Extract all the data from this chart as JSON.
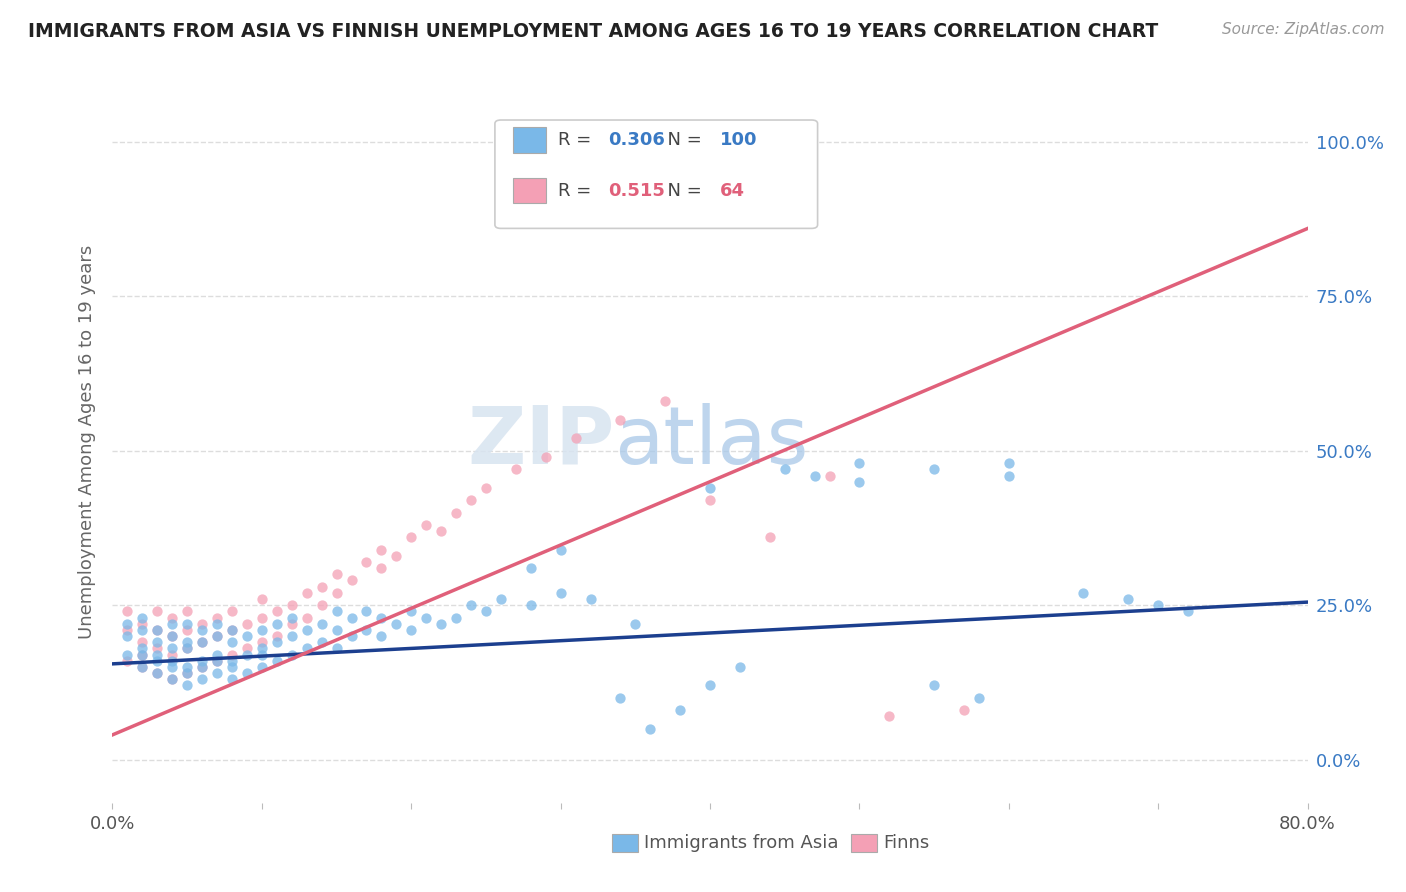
{
  "title": "IMMIGRANTS FROM ASIA VS FINNISH UNEMPLOYMENT AMONG AGES 16 TO 19 YEARS CORRELATION CHART",
  "source": "Source: ZipAtlas.com",
  "ylabel": "Unemployment Among Ages 16 to 19 years",
  "legend_blue_r": "0.306",
  "legend_blue_n": "100",
  "legend_pink_r": "0.515",
  "legend_pink_n": "64",
  "legend_blue_label": "Immigrants from Asia",
  "legend_pink_label": "Finns",
  "xlim": [
    0.0,
    0.8
  ],
  "ylim": [
    -0.07,
    1.1
  ],
  "y_ticks_right": [
    0.0,
    0.25,
    0.5,
    0.75,
    1.0
  ],
  "y_tick_labels_right": [
    "0.0%",
    "25.0%",
    "50.0%",
    "75.0%",
    "100.0%"
  ],
  "grid_color": "#dddddd",
  "blue_color": "#7ab8e8",
  "pink_color": "#f4a0b5",
  "blue_line_color": "#1c3f8f",
  "pink_line_color": "#e0607a",
  "watermark_zip": "ZIP",
  "watermark_atlas": "atlas",
  "blue_scatter_x": [
    0.01,
    0.01,
    0.01,
    0.02,
    0.02,
    0.02,
    0.02,
    0.02,
    0.03,
    0.03,
    0.03,
    0.03,
    0.03,
    0.04,
    0.04,
    0.04,
    0.04,
    0.04,
    0.04,
    0.05,
    0.05,
    0.05,
    0.05,
    0.05,
    0.05,
    0.06,
    0.06,
    0.06,
    0.06,
    0.06,
    0.07,
    0.07,
    0.07,
    0.07,
    0.07,
    0.08,
    0.08,
    0.08,
    0.08,
    0.08,
    0.09,
    0.09,
    0.09,
    0.1,
    0.1,
    0.1,
    0.1,
    0.11,
    0.11,
    0.11,
    0.12,
    0.12,
    0.12,
    0.13,
    0.13,
    0.14,
    0.14,
    0.15,
    0.15,
    0.15,
    0.16,
    0.16,
    0.17,
    0.17,
    0.18,
    0.18,
    0.19,
    0.2,
    0.2,
    0.21,
    0.22,
    0.23,
    0.24,
    0.25,
    0.26,
    0.28,
    0.3,
    0.32,
    0.34,
    0.36,
    0.38,
    0.4,
    0.42,
    0.45,
    0.47,
    0.5,
    0.55,
    0.6,
    0.65,
    0.68,
    0.7,
    0.72,
    0.6,
    0.5,
    0.4,
    0.58,
    0.55,
    0.35,
    0.3,
    0.28
  ],
  "blue_scatter_y": [
    0.17,
    0.2,
    0.22,
    0.15,
    0.18,
    0.21,
    0.17,
    0.23,
    0.14,
    0.17,
    0.19,
    0.16,
    0.21,
    0.13,
    0.16,
    0.18,
    0.15,
    0.2,
    0.22,
    0.12,
    0.15,
    0.18,
    0.14,
    0.19,
    0.22,
    0.13,
    0.16,
    0.19,
    0.15,
    0.21,
    0.14,
    0.17,
    0.2,
    0.16,
    0.22,
    0.13,
    0.16,
    0.19,
    0.15,
    0.21,
    0.14,
    0.17,
    0.2,
    0.15,
    0.18,
    0.21,
    0.17,
    0.16,
    0.19,
    0.22,
    0.17,
    0.2,
    0.23,
    0.18,
    0.21,
    0.19,
    0.22,
    0.18,
    0.21,
    0.24,
    0.2,
    0.23,
    0.21,
    0.24,
    0.2,
    0.23,
    0.22,
    0.21,
    0.24,
    0.23,
    0.22,
    0.23,
    0.25,
    0.24,
    0.26,
    0.25,
    0.27,
    0.26,
    0.1,
    0.05,
    0.08,
    0.12,
    0.15,
    0.47,
    0.46,
    0.48,
    0.47,
    0.46,
    0.27,
    0.26,
    0.25,
    0.24,
    0.48,
    0.45,
    0.44,
    0.1,
    0.12,
    0.22,
    0.34,
    0.31
  ],
  "pink_scatter_x": [
    0.01,
    0.01,
    0.01,
    0.02,
    0.02,
    0.02,
    0.02,
    0.03,
    0.03,
    0.03,
    0.03,
    0.04,
    0.04,
    0.04,
    0.04,
    0.05,
    0.05,
    0.05,
    0.05,
    0.06,
    0.06,
    0.06,
    0.07,
    0.07,
    0.07,
    0.08,
    0.08,
    0.08,
    0.09,
    0.09,
    0.1,
    0.1,
    0.1,
    0.11,
    0.11,
    0.12,
    0.12,
    0.13,
    0.13,
    0.14,
    0.14,
    0.15,
    0.15,
    0.16,
    0.17,
    0.18,
    0.18,
    0.19,
    0.2,
    0.21,
    0.22,
    0.23,
    0.24,
    0.25,
    0.27,
    0.29,
    0.31,
    0.34,
    0.37,
    0.4,
    0.44,
    0.48,
    0.52,
    0.57
  ],
  "pink_scatter_y": [
    0.16,
    0.21,
    0.24,
    0.15,
    0.19,
    0.22,
    0.17,
    0.14,
    0.18,
    0.21,
    0.24,
    0.13,
    0.17,
    0.2,
    0.23,
    0.14,
    0.18,
    0.21,
    0.24,
    0.15,
    0.19,
    0.22,
    0.16,
    0.2,
    0.23,
    0.17,
    0.21,
    0.24,
    0.18,
    0.22,
    0.19,
    0.23,
    0.26,
    0.2,
    0.24,
    0.22,
    0.25,
    0.23,
    0.27,
    0.25,
    0.28,
    0.27,
    0.3,
    0.29,
    0.32,
    0.31,
    0.34,
    0.33,
    0.36,
    0.38,
    0.37,
    0.4,
    0.42,
    0.44,
    0.47,
    0.49,
    0.52,
    0.55,
    0.58,
    0.42,
    0.36,
    0.46,
    0.07,
    0.08
  ],
  "blue_trendline_x": [
    0.0,
    0.8
  ],
  "blue_trendline_y": [
    0.155,
    0.255
  ],
  "pink_trendline_x": [
    0.0,
    0.8
  ],
  "pink_trendline_y": [
    0.04,
    0.86
  ]
}
